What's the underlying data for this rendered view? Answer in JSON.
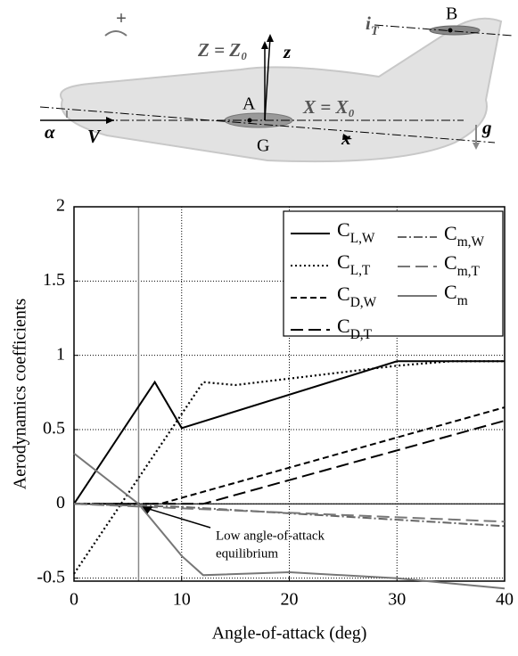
{
  "diagram": {
    "labels": [
      "+",
      "Z = Z₀",
      "z",
      "iT",
      "B",
      "A",
      "X = X₀",
      "α",
      "V",
      "G",
      "x",
      "g"
    ]
  },
  "chart_data": {
    "type": "line",
    "xlabel": "Angle-of-attack (deg)",
    "ylabel": "Aerodynamics coefficients",
    "xlim": [
      0,
      40
    ],
    "ylim": [
      -0.52,
      2
    ],
    "xticks": [
      0,
      10,
      20,
      30,
      40
    ],
    "yticks": [
      -0.5,
      0,
      0.5,
      1,
      1.5,
      2
    ],
    "grid": true,
    "legend": "upper right",
    "hline": 0,
    "annotation": {
      "lines": [
        "Low angle-of-attack",
        "equilibrium"
      ],
      "x": 6,
      "y": 0
    },
    "series": [
      {
        "name": "CL,W",
        "color": "#000000",
        "style": "solid",
        "x": [
          0,
          7.5,
          10,
          30,
          40
        ],
        "values": [
          0,
          0.82,
          0.51,
          0.96,
          0.96
        ]
      },
      {
        "name": "CL,T",
        "color": "#000000",
        "style": "dotted",
        "x": [
          0,
          12,
          15,
          30,
          35,
          40
        ],
        "values": [
          -0.47,
          0.82,
          0.8,
          0.93,
          0.96,
          0.96
        ]
      },
      {
        "name": "CD,W",
        "color": "#000000",
        "style": "dashed",
        "x": [
          0,
          8,
          40
        ],
        "values": [
          0,
          0,
          0.65
        ]
      },
      {
        "name": "CD,T",
        "color": "#000000",
        "style": "long-dashed",
        "x": [
          0,
          12,
          40
        ],
        "values": [
          0,
          0,
          0.56
        ]
      },
      {
        "name": "Cm,W",
        "color": "#666666",
        "style": "dash-dot",
        "x": [
          0,
          10,
          40
        ],
        "values": [
          0,
          -0.02,
          -0.15
        ]
      },
      {
        "name": "Cm,T",
        "color": "#777777",
        "style": "long-dashed",
        "x": [
          0,
          40
        ],
        "values": [
          0,
          -0.12
        ]
      },
      {
        "name": "Cm",
        "color": "#777777",
        "style": "solid",
        "x": [
          0,
          6,
          10,
          12,
          20,
          30,
          40
        ],
        "values": [
          0.34,
          0,
          -0.35,
          -0.48,
          -0.46,
          -0.5,
          -0.57
        ]
      }
    ]
  }
}
